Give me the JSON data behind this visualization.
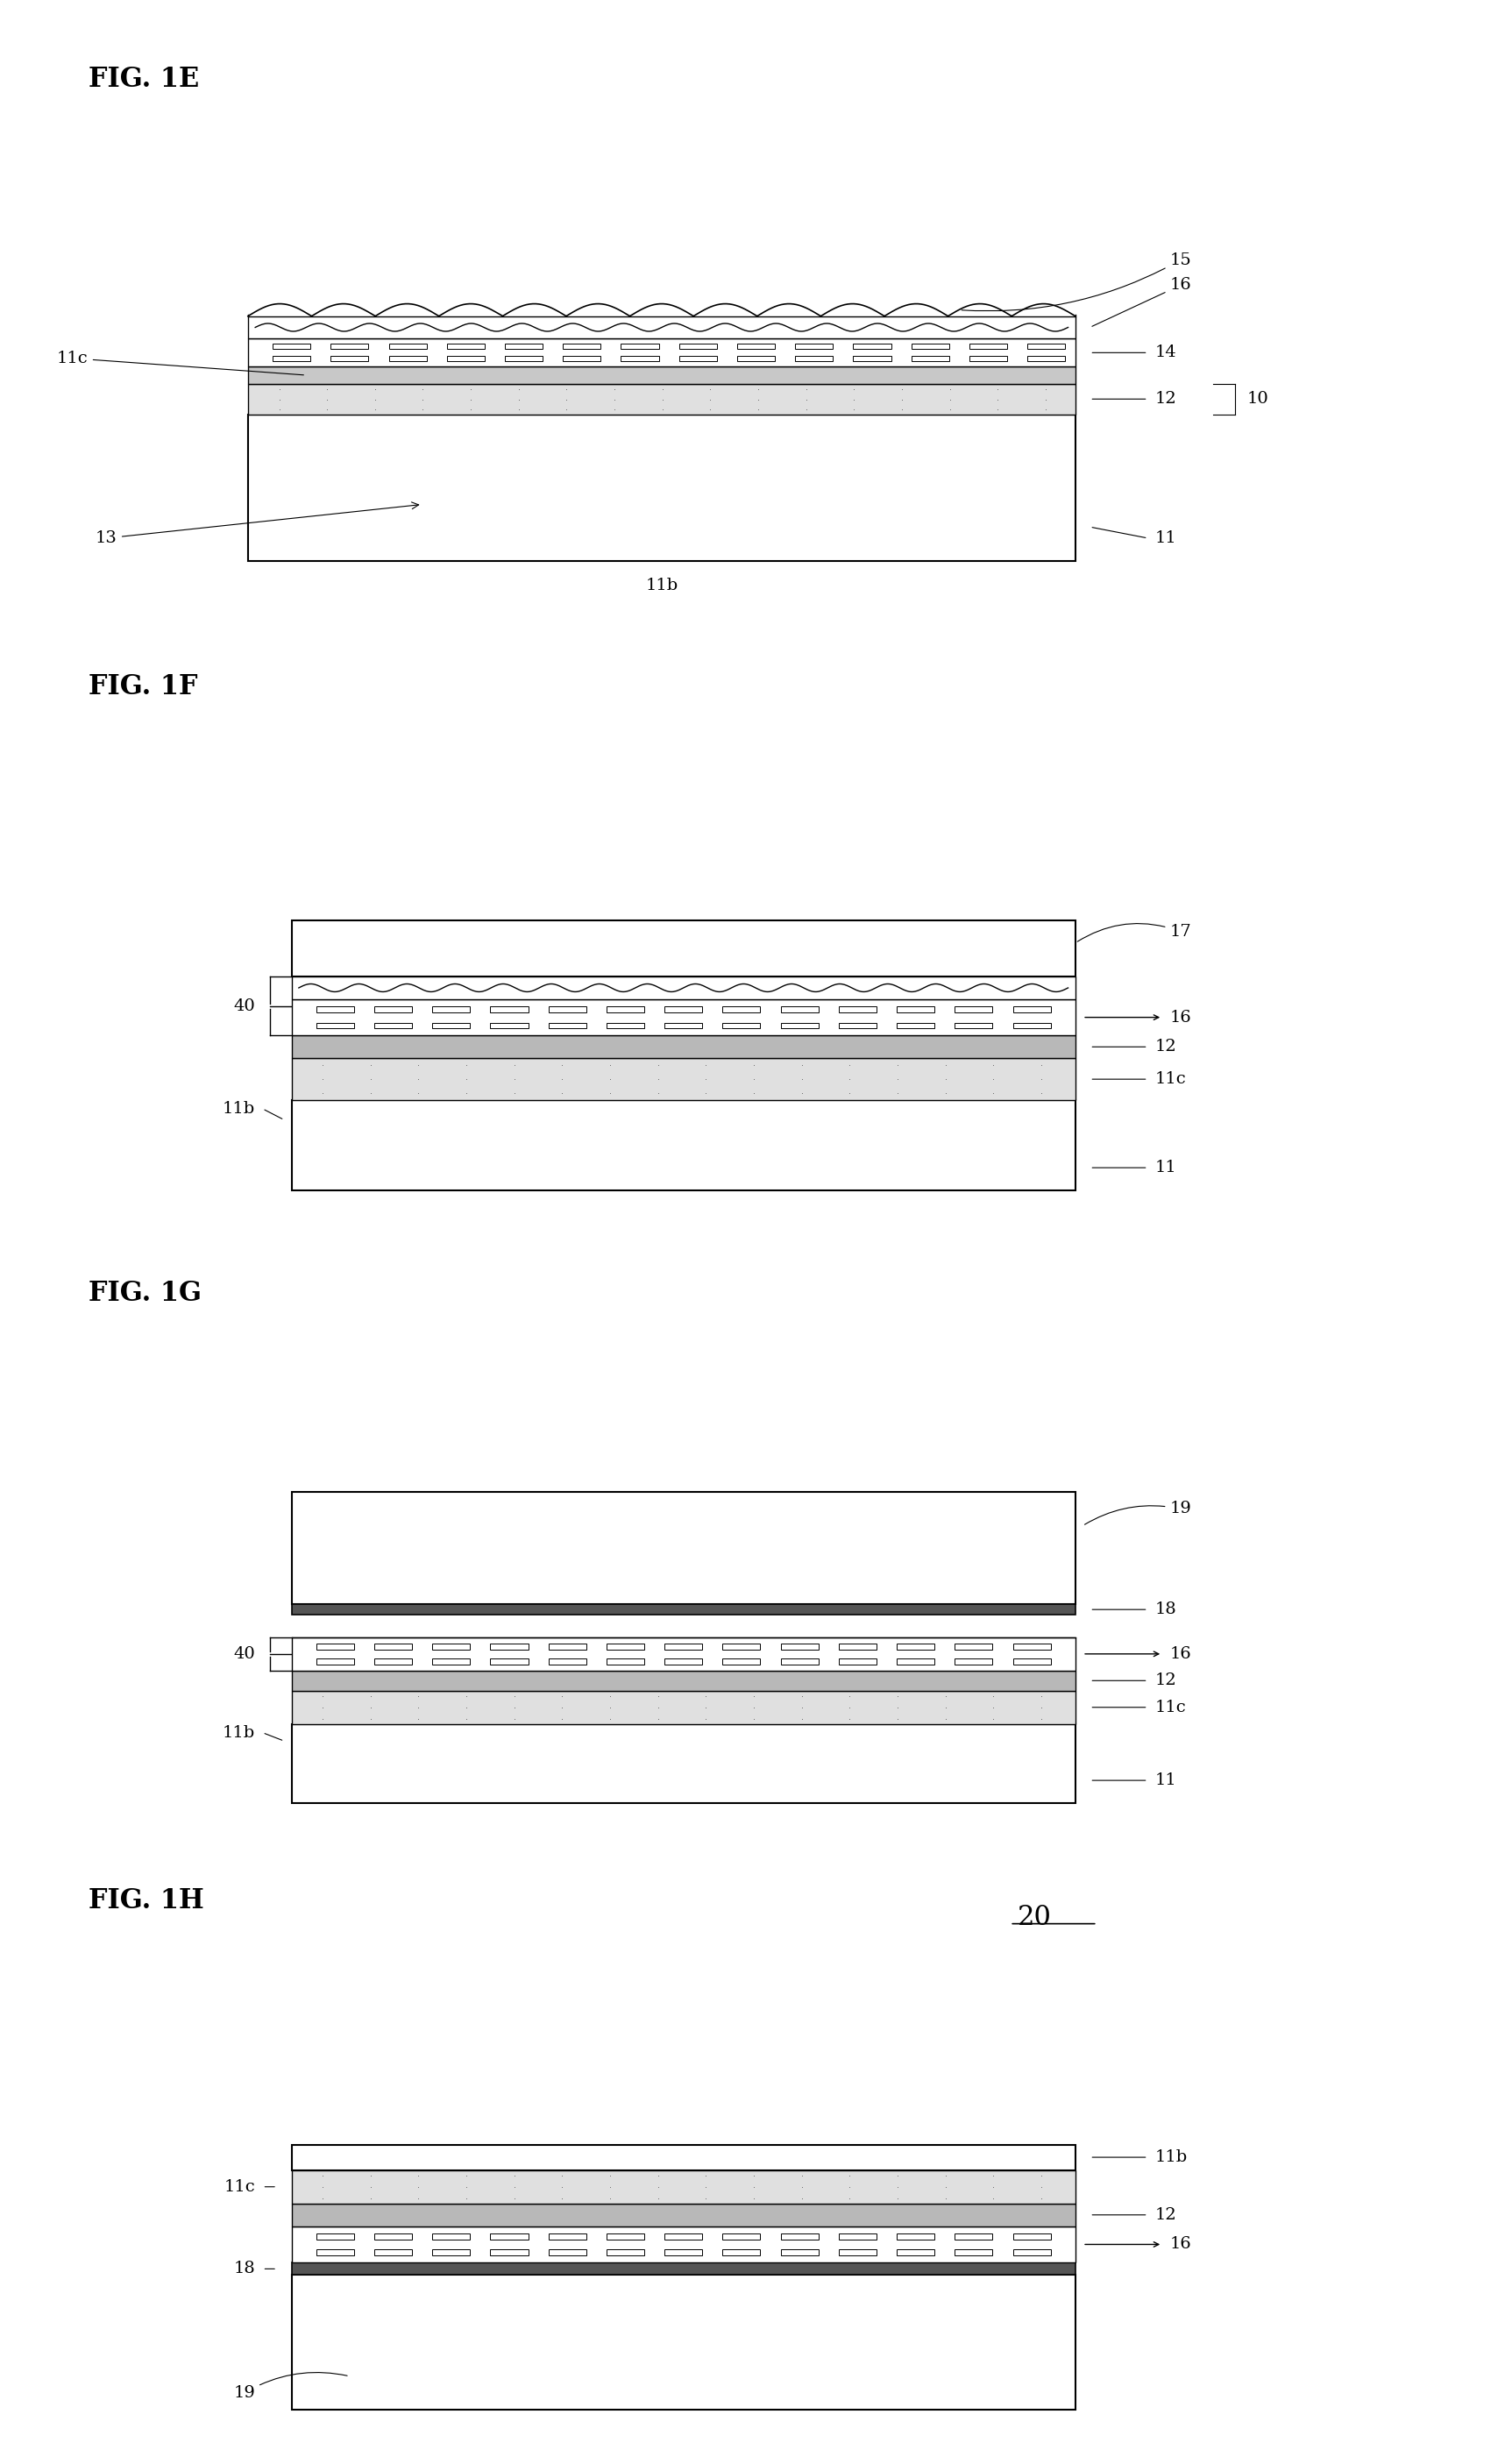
{
  "bg_color": "#ffffff",
  "fig_labels": [
    "FIG. 1E",
    "FIG. 1F",
    "FIG. 1G",
    "FIG. 1H"
  ],
  "fig_label_fontsize": 22,
  "label_fontsize": 14,
  "lw_main": 1.2,
  "lw_thin": 0.8
}
